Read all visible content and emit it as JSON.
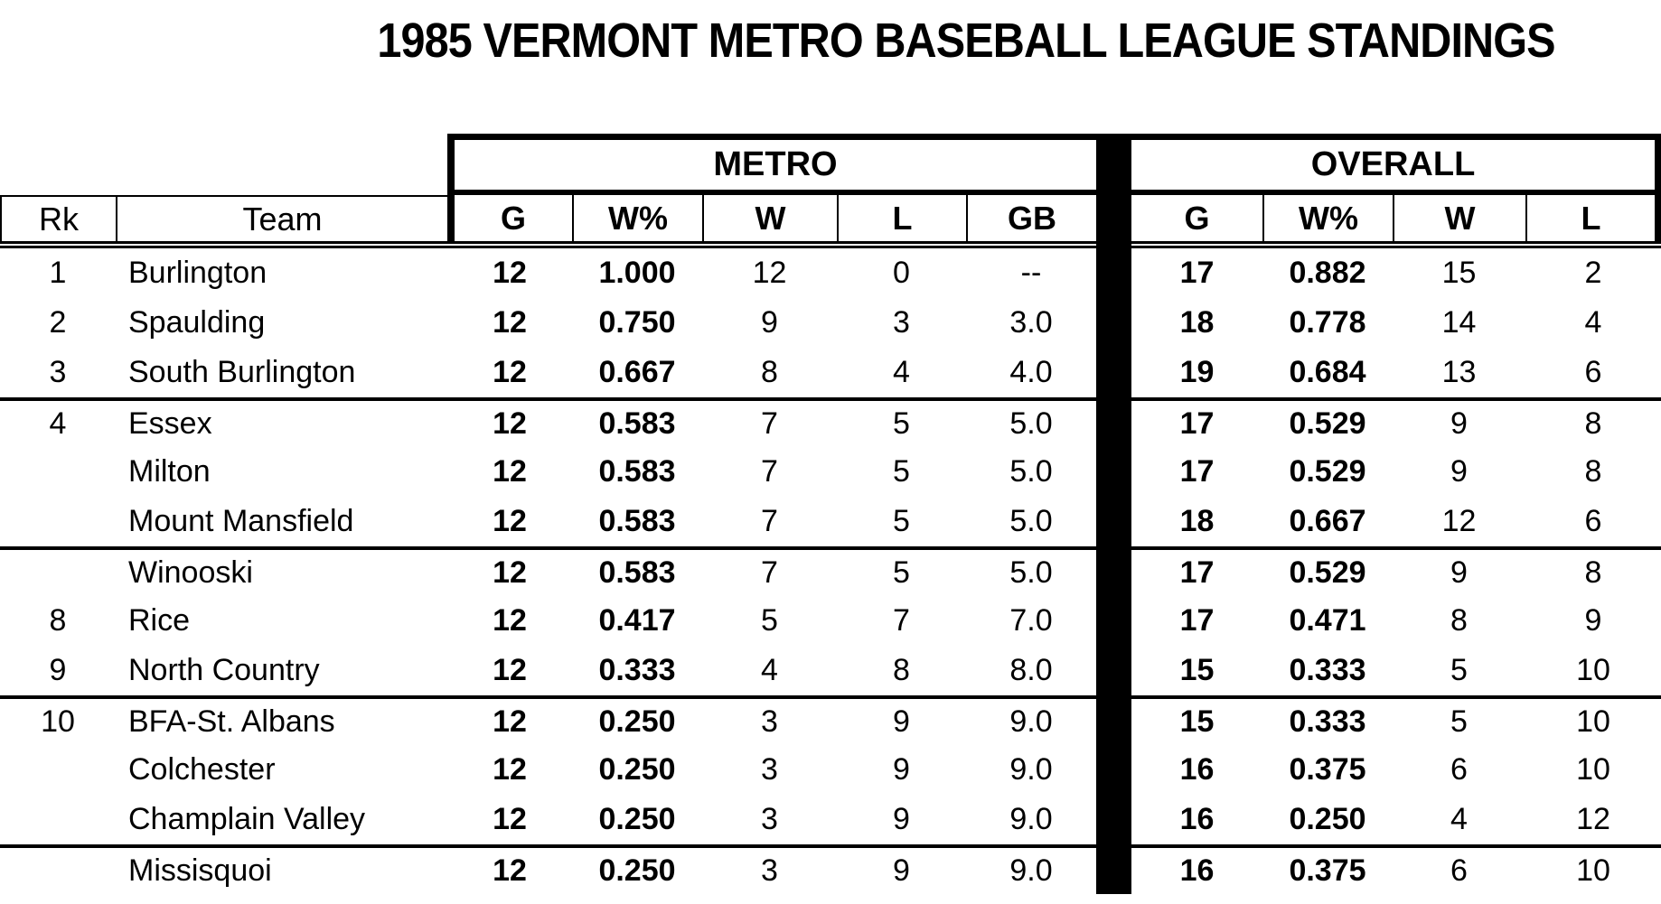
{
  "title": "1985 VERMONT METRO BASEBALL LEAGUE STANDINGS",
  "groups": {
    "metro": "METRO",
    "overall": "OVERALL"
  },
  "headers": {
    "rk": "Rk",
    "team": "Team",
    "g": "G",
    "wpct": "W%",
    "w": "W",
    "l": "L",
    "gb": "GB"
  },
  "colors": {
    "ink": "#000000",
    "paper": "#ffffff"
  },
  "rows": [
    {
      "rk": "1",
      "team": "Burlington",
      "metro": {
        "g": "12",
        "wpct": "1.000",
        "w": "12",
        "l": "0",
        "gb": "--"
      },
      "overall": {
        "g": "17",
        "wpct": "0.882",
        "w": "15",
        "l": "2"
      },
      "divider_above": false
    },
    {
      "rk": "2",
      "team": "Spaulding",
      "metro": {
        "g": "12",
        "wpct": "0.750",
        "w": "9",
        "l": "3",
        "gb": "3.0"
      },
      "overall": {
        "g": "18",
        "wpct": "0.778",
        "w": "14",
        "l": "4"
      },
      "divider_above": false
    },
    {
      "rk": "3",
      "team": "South Burlington",
      "metro": {
        "g": "12",
        "wpct": "0.667",
        "w": "8",
        "l": "4",
        "gb": "4.0"
      },
      "overall": {
        "g": "19",
        "wpct": "0.684",
        "w": "13",
        "l": "6"
      },
      "divider_above": false
    },
    {
      "rk": "4",
      "team": "Essex",
      "metro": {
        "g": "12",
        "wpct": "0.583",
        "w": "7",
        "l": "5",
        "gb": "5.0"
      },
      "overall": {
        "g": "17",
        "wpct": "0.529",
        "w": "9",
        "l": "8"
      },
      "divider_above": true
    },
    {
      "rk": "",
      "team": "Milton",
      "metro": {
        "g": "12",
        "wpct": "0.583",
        "w": "7",
        "l": "5",
        "gb": "5.0"
      },
      "overall": {
        "g": "17",
        "wpct": "0.529",
        "w": "9",
        "l": "8"
      },
      "divider_above": false
    },
    {
      "rk": "",
      "team": "Mount Mansfield",
      "metro": {
        "g": "12",
        "wpct": "0.583",
        "w": "7",
        "l": "5",
        "gb": "5.0"
      },
      "overall": {
        "g": "18",
        "wpct": "0.667",
        "w": "12",
        "l": "6"
      },
      "divider_above": false
    },
    {
      "rk": "",
      "team": "Winooski",
      "metro": {
        "g": "12",
        "wpct": "0.583",
        "w": "7",
        "l": "5",
        "gb": "5.0"
      },
      "overall": {
        "g": "17",
        "wpct": "0.529",
        "w": "9",
        "l": "8"
      },
      "divider_above": true
    },
    {
      "rk": "8",
      "team": "Rice",
      "metro": {
        "g": "12",
        "wpct": "0.417",
        "w": "5",
        "l": "7",
        "gb": "7.0"
      },
      "overall": {
        "g": "17",
        "wpct": "0.471",
        "w": "8",
        "l": "9"
      },
      "divider_above": false
    },
    {
      "rk": "9",
      "team": "North Country",
      "metro": {
        "g": "12",
        "wpct": "0.333",
        "w": "4",
        "l": "8",
        "gb": "8.0"
      },
      "overall": {
        "g": "15",
        "wpct": "0.333",
        "w": "5",
        "l": "10"
      },
      "divider_above": false
    },
    {
      "rk": "10",
      "team": "BFA-St. Albans",
      "metro": {
        "g": "12",
        "wpct": "0.250",
        "w": "3",
        "l": "9",
        "gb": "9.0"
      },
      "overall": {
        "g": "15",
        "wpct": "0.333",
        "w": "5",
        "l": "10"
      },
      "divider_above": true
    },
    {
      "rk": "",
      "team": "Colchester",
      "metro": {
        "g": "12",
        "wpct": "0.250",
        "w": "3",
        "l": "9",
        "gb": "9.0"
      },
      "overall": {
        "g": "16",
        "wpct": "0.375",
        "w": "6",
        "l": "10"
      },
      "divider_above": false
    },
    {
      "rk": "",
      "team": "Champlain Valley",
      "metro": {
        "g": "12",
        "wpct": "0.250",
        "w": "3",
        "l": "9",
        "gb": "9.0"
      },
      "overall": {
        "g": "16",
        "wpct": "0.250",
        "w": "4",
        "l": "12"
      },
      "divider_above": false
    },
    {
      "rk": "",
      "team": "Missisquoi",
      "metro": {
        "g": "12",
        "wpct": "0.250",
        "w": "3",
        "l": "9",
        "gb": "9.0"
      },
      "overall": {
        "g": "16",
        "wpct": "0.375",
        "w": "6",
        "l": "10"
      },
      "divider_above": true
    }
  ]
}
